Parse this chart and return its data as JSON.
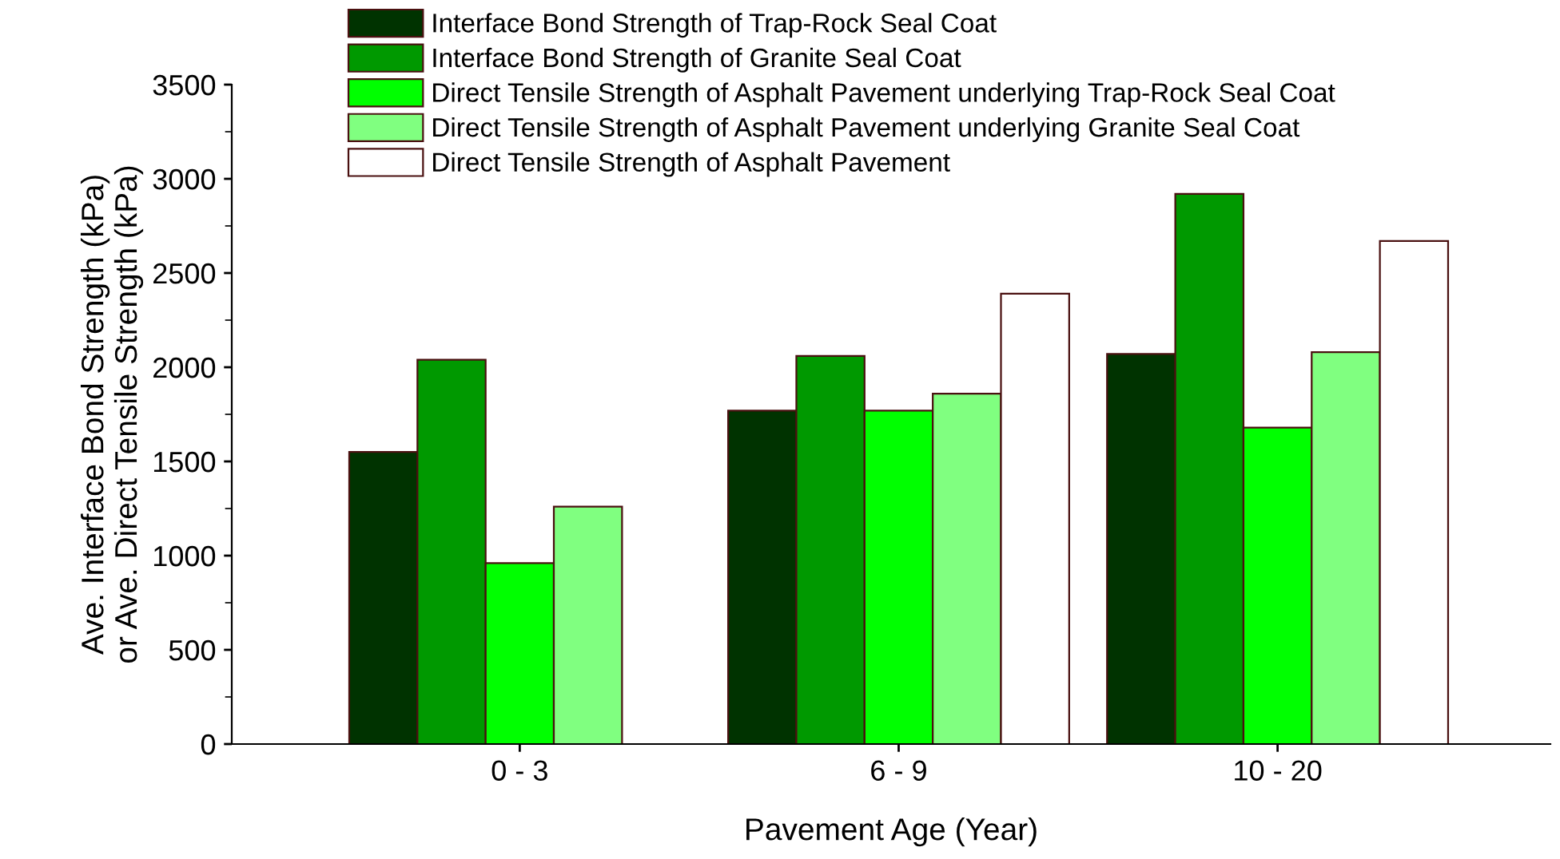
{
  "chart_data": {
    "type": "bar",
    "xlabel": "Pavement Age (Year)",
    "ylabel": "Ave. Interface Bond Strength (kPa)\nor Ave. Direct Tensile Strength (kPa)",
    "categories": [
      "0 - 3",
      "6 - 9",
      "10 - 20"
    ],
    "series": [
      {
        "name": "Interface Bond Strength of Trap-Rock Seal Coat",
        "color": "#003300",
        "values": [
          1550,
          1770,
          2070
        ]
      },
      {
        "name": "Interface Bond Strength of Granite Seal Coat",
        "color": "#009900",
        "values": [
          2040,
          2060,
          2920
        ]
      },
      {
        "name": "Direct Tensile Strength of Asphalt Pavement underlying Trap-Rock Seal Coat",
        "color": "#00ff00",
        "values": [
          960,
          1770,
          1680
        ]
      },
      {
        "name": "Direct Tensile Strength of Asphalt Pavement underlying Granite Seal Coat",
        "color": "#80ff80",
        "values": [
          1260,
          1860,
          2080
        ]
      },
      {
        "name": "Direct Tensile Strength of Asphalt Pavement",
        "color": "#ffffff",
        "values": [
          null,
          2390,
          2670
        ]
      }
    ],
    "ylim": [
      0,
      3500
    ],
    "yticks": [
      0,
      500,
      1000,
      1500,
      2000,
      2500,
      3000,
      3500
    ],
    "grid": false,
    "legend": "top left"
  }
}
